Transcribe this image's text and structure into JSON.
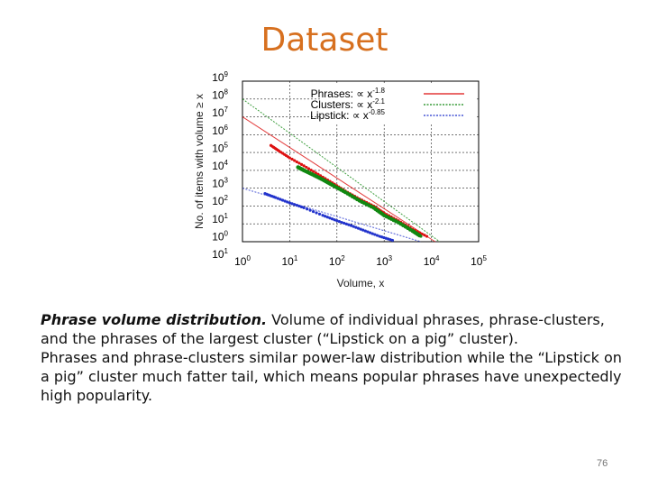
{
  "slide": {
    "title": "Dataset",
    "caption_lead": "Phrase volume distribution.",
    "caption_rest": " Volume of individual phrases, phrase-clusters, and the phrases  of the largest cluster (“Lipstick on a pig” cluster).",
    "caption_second": "Phrases and phrase-clusters similar power-law distribution while the “Lipstick on a pig” cluster much fatter tail, which means popular phrases have unexpectedly high popularity.",
    "page_number": "76"
  },
  "chart_data": {
    "type": "scatter",
    "xlabel": "Volume, x",
    "ylabel": "No. of items with volume ≥ x",
    "x_scale": "log",
    "y_scale": "log",
    "xlim": [
      1,
      100000
    ],
    "ylim": [
      1,
      1000000000
    ],
    "x_tick_labels": [
      "10^0",
      "10^1",
      "10^2",
      "10^3",
      "10^4",
      "10^5"
    ],
    "y_tick_labels": [
      "10^9",
      "10^8",
      "10^7",
      "10^6",
      "10^5",
      "10^4",
      "10^3",
      "10^2",
      "10^1",
      "10^0",
      "10^1"
    ],
    "grid": true,
    "legend_position": "top-right",
    "series": [
      {
        "name": "Phrases: ∝ x^-1.8",
        "legend_label": "Phrases: ∝ x",
        "legend_exponent": "-1.8",
        "color": "#dd1111",
        "points": [
          [
            4,
            250000
          ],
          [
            6,
            120000
          ],
          [
            10,
            50000
          ],
          [
            20,
            18000
          ],
          [
            40,
            6000
          ],
          [
            80,
            2000
          ],
          [
            150,
            700
          ],
          [
            300,
            250
          ],
          [
            600,
            100
          ],
          [
            1000,
            40
          ],
          [
            2000,
            15
          ],
          [
            4000,
            5
          ],
          [
            8000,
            2
          ]
        ],
        "fit": [
          [
            1,
            10000000
          ],
          [
            12000,
            1
          ]
        ]
      },
      {
        "name": "Clusters: ∝ x^-2.1",
        "legend_label": "Clusters: ∝ x",
        "legend_exponent": "-2.1",
        "color": "#118811",
        "points": [
          [
            15,
            15000
          ],
          [
            20,
            10000
          ],
          [
            30,
            6000
          ],
          [
            50,
            3000
          ],
          [
            80,
            1500
          ],
          [
            150,
            600
          ],
          [
            300,
            200
          ],
          [
            600,
            80
          ],
          [
            1000,
            30
          ],
          [
            2000,
            12
          ],
          [
            4000,
            4
          ],
          [
            6000,
            2
          ]
        ],
        "fit": [
          [
            1,
            100000000
          ],
          [
            15000,
            1
          ]
        ]
      },
      {
        "name": "Lipstick: ∝ x^-0.85",
        "legend_label": "Lipstick: ∝ x",
        "legend_exponent": "-0.85",
        "color": "#2233cc",
        "points": [
          [
            3,
            500
          ],
          [
            5,
            300
          ],
          [
            10,
            150
          ],
          [
            20,
            80
          ],
          [
            50,
            30
          ],
          [
            100,
            15
          ],
          [
            200,
            8
          ],
          [
            400,
            4
          ],
          [
            800,
            2
          ],
          [
            1500,
            1.2
          ]
        ],
        "fit": [
          [
            1,
            1000
          ],
          [
            6000,
            1
          ]
        ]
      }
    ]
  }
}
